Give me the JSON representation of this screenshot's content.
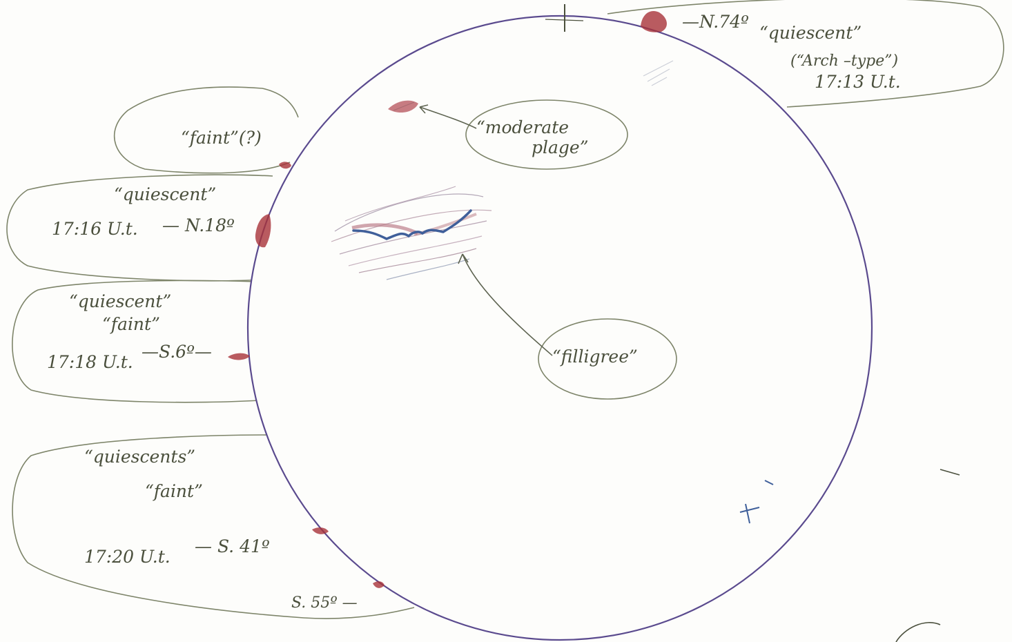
{
  "colors": {
    "paper": "#fdfdfb",
    "pencil": "#4a4f3c",
    "bubble_stroke": "#7d8469",
    "limb": "#5a4a8e",
    "prominence_red": "#a8323a",
    "filament_blue": "#3f5f9a"
  },
  "annotations": {
    "north_prominence": {
      "pa": "—N.74º",
      "type": "“quiescent”",
      "subtype": "(“Arch –type”)",
      "time": "17:13 U.t."
    },
    "faint_query": {
      "label": "“faint”(?)"
    },
    "n18_prominence": {
      "type": "“quiescent”",
      "time": "17:16 U.t.",
      "pa": "— N.18º"
    },
    "s6_prominence": {
      "type": "“quiescent”",
      "strength": "“faint”",
      "time": "17:18 U.t.",
      "pa": "—S.6º—"
    },
    "s41_prominence": {
      "type": "“quiescents”",
      "strength": "“faint”",
      "time": "17:20 U.t.",
      "pa": "— S. 41º",
      "pa2": "S. 55º —"
    },
    "plage": {
      "label_line1": "“moderate",
      "label_line2": "plage”"
    },
    "filigree": {
      "label": "“filligree”"
    }
  }
}
